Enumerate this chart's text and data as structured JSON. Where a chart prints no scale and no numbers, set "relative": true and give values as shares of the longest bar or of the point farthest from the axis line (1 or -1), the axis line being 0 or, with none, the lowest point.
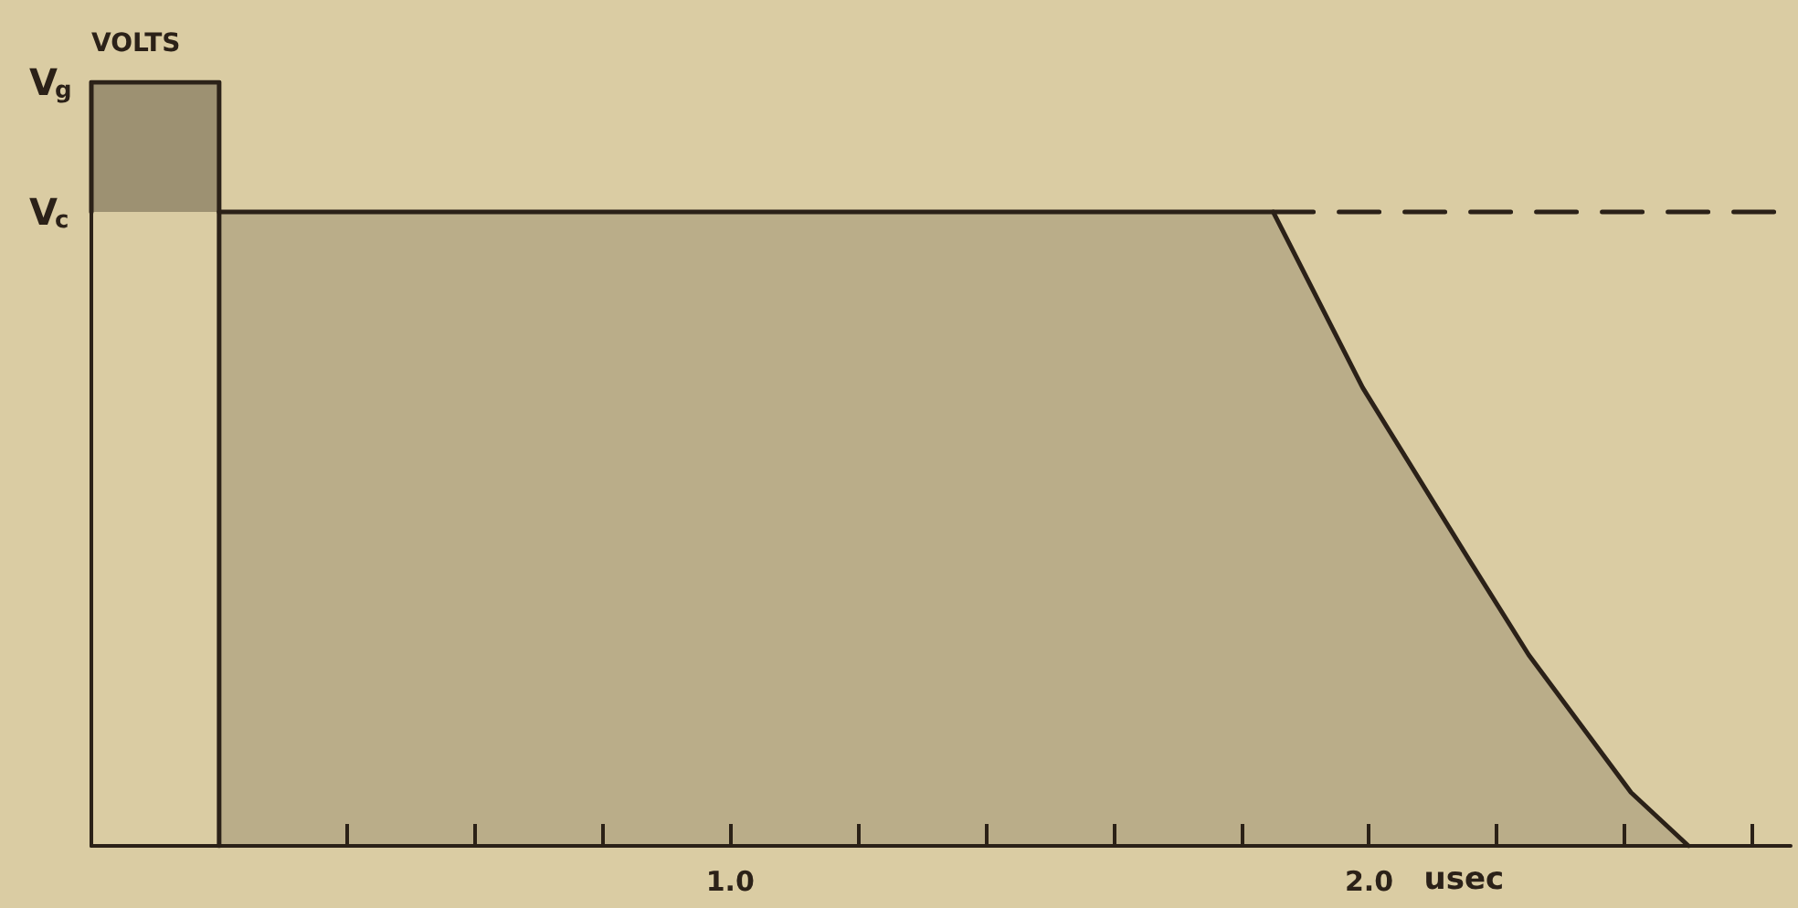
{
  "chart_data": {
    "type": "area",
    "relative": true,
    "xlabel": "usec",
    "ylabel": "VOLTS",
    "xlim": [
      0,
      2.66
    ],
    "xticks": [
      {
        "value": 0.4,
        "label": null
      },
      {
        "value": 0.6,
        "label": null
      },
      {
        "value": 0.8,
        "label": null
      },
      {
        "value": 1.0,
        "label": "1.0"
      },
      {
        "value": 1.2,
        "label": null
      },
      {
        "value": 1.4,
        "label": null
      },
      {
        "value": 1.6,
        "label": null
      },
      {
        "value": 1.8,
        "label": null
      },
      {
        "value": 2.0,
        "label": "2.0"
      },
      {
        "value": 2.2,
        "label": null
      },
      {
        "value": 2.4,
        "label": null
      },
      {
        "value": 2.6,
        "label": null
      }
    ],
    "series": [
      {
        "color": "#2b2118",
        "x": [
          0.2,
          0.2,
          1.85,
          1.99,
          2.16,
          2.25,
          2.33,
          2.41,
          2.5
        ],
        "values": [
          0,
          0.83,
          0.83,
          0.6,
          0.37,
          0.25,
          0.16,
          0.07,
          0
        ]
      },
      {
        "color": "#2b2118",
        "x": [
          0,
          0,
          0.2,
          0.2
        ],
        "values": [
          0.83,
          1,
          1,
          0.83
        ]
      },
      {
        "type": "line",
        "color": "#2b2118",
        "x": [
          1.85,
          2.66
        ],
        "values": [
          0.83,
          0.83
        ],
        "line_style": "dashed"
      }
    ],
    "annotations": [
      {
        "text": "V$_{g}$",
        "x": 0,
        "y": 1
      },
      {
        "text": "V$_{c}$",
        "x": 0,
        "y": 0.83
      }
    ],
    "grid": false
  }
}
